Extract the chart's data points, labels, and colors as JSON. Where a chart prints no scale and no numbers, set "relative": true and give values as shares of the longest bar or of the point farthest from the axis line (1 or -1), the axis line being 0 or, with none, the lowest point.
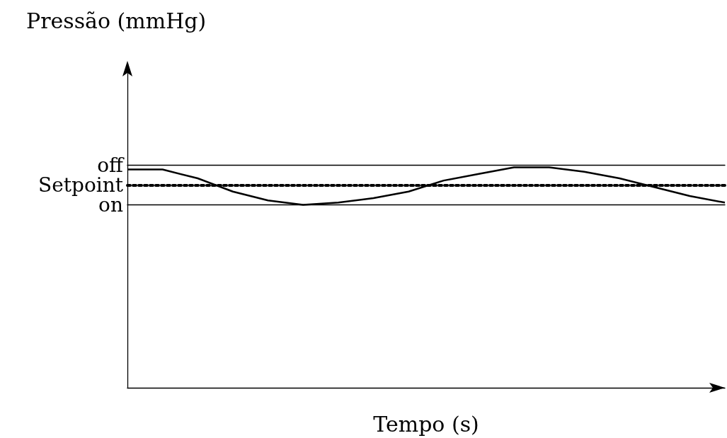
{
  "chart_data": {
    "type": "line",
    "relative": true,
    "xlabel": "Tempo (s)",
    "annotations": [
      "Pressão (mmHg)"
    ],
    "categories": [
      null,
      null,
      null,
      null,
      null,
      null,
      null,
      null,
      null,
      null,
      null,
      null,
      null,
      null,
      null,
      null,
      null,
      null
    ],
    "series": [
      {
        "color": "#000000",
        "values": [
          0.99,
          0.99,
          0.95,
          0.89,
          0.85,
          0.83,
          0.84,
          0.86,
          0.89,
          0.94,
          0.97,
          1.0,
          1.0,
          0.98,
          0.95,
          0.91,
          0.87,
          0.84
        ]
      }
    ],
    "ref_lines": [
      {
        "axis": "y",
        "value": 1.01,
        "label": "off",
        "color": "#000000",
        "line_style": "solid"
      },
      {
        "axis": "y",
        "value": 0.92,
        "label": "Setpoint",
        "color": "#000000",
        "line_style": "dotted"
      },
      {
        "axis": "y",
        "value": 0.83,
        "label": "on",
        "color": "#000000",
        "line_style": "solid"
      }
    ],
    "grid": false,
    "marker": "none",
    "line_style": "solid"
  }
}
